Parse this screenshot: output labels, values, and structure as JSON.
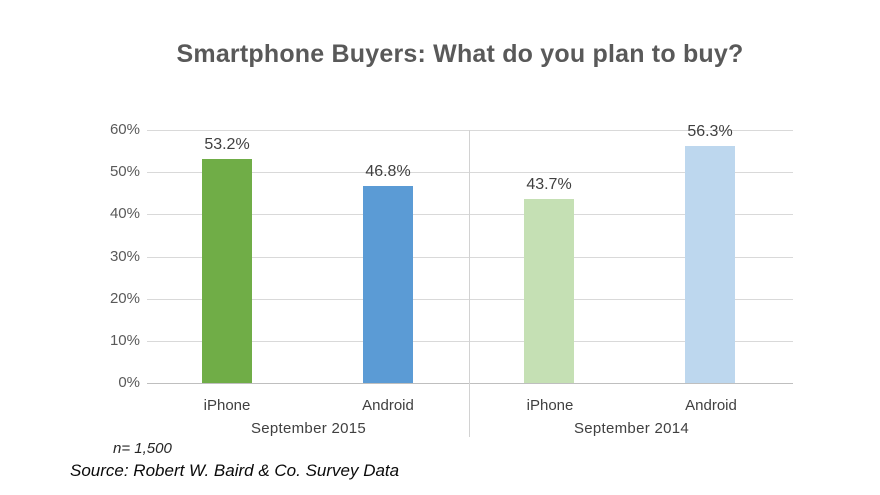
{
  "title": "Smartphone Buyers: What do you plan to buy?",
  "chart_data": {
    "type": "bar",
    "title": "Smartphone Buyers: What do you plan to buy?",
    "group_labels": [
      "September 2015",
      "September 2014"
    ],
    "categories": [
      "iPhone",
      "Android",
      "iPhone",
      "Android"
    ],
    "groups": [
      {
        "label": "September 2015",
        "bars": [
          {
            "category": "iPhone",
            "value": 53.2,
            "display": "53.2%",
            "color": "#70AD47"
          },
          {
            "category": "Android",
            "value": 46.8,
            "display": "46.8%",
            "color": "#5B9BD5"
          }
        ]
      },
      {
        "label": "September 2014",
        "bars": [
          {
            "category": "iPhone",
            "value": 43.7,
            "display": "43.7%",
            "color": "#C5E0B4"
          },
          {
            "category": "Android",
            "value": 56.3,
            "display": "56.3%",
            "color": "#BDD7EE"
          }
        ]
      }
    ],
    "y_axis": {
      "ticks": [
        "60%",
        "50%",
        "40%",
        "30%",
        "20%",
        "10%",
        "0%"
      ],
      "min": 0,
      "max": 60,
      "grid": true
    },
    "legend": "none",
    "colors": {
      "grid": "#D9D9D9",
      "axis_line": "#BFBFBF",
      "title_text": "#595959",
      "axis_text": "#595959",
      "label_text": "#404040"
    }
  },
  "footer": {
    "sample_size": "n= 1,500",
    "source": "Source: Robert W. Baird & Co. Survey Data"
  }
}
